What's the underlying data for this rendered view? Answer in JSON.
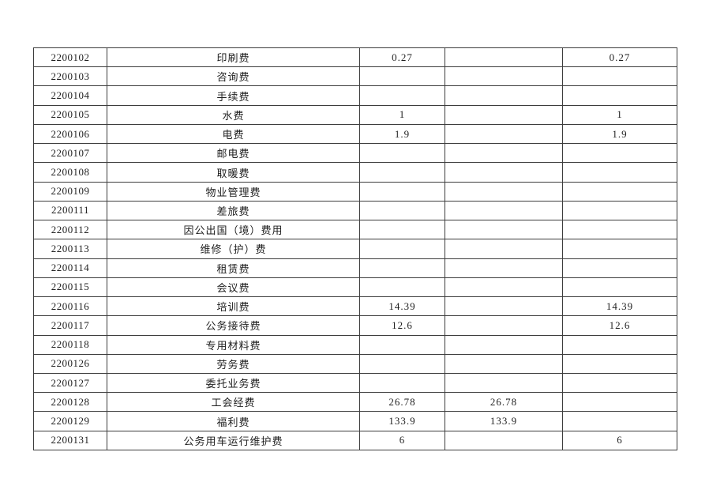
{
  "page": {
    "background_color": "#ffffff",
    "text_color": "#1f1f1f",
    "table_border_color": "#3d3d3d"
  },
  "table": {
    "description": "expense-items-table",
    "columns": [
      {
        "key": "code",
        "label": ""
      },
      {
        "key": "name",
        "label": ""
      },
      {
        "key": "v1",
        "label": ""
      },
      {
        "key": "v2",
        "label": ""
      },
      {
        "key": "v3",
        "label": ""
      }
    ],
    "rows": [
      {
        "code": "2200102",
        "name": "印刷费",
        "v1": "0.27",
        "v2": "",
        "v3": "0.27"
      },
      {
        "code": "2200103",
        "name": "咨询费",
        "v1": "",
        "v2": "",
        "v3": ""
      },
      {
        "code": "2200104",
        "name": "手续费",
        "v1": "",
        "v2": "",
        "v3": ""
      },
      {
        "code": "2200105",
        "name": "水费",
        "v1": "1",
        "v2": "",
        "v3": "1"
      },
      {
        "code": "2200106",
        "name": "电费",
        "v1": "1.9",
        "v2": "",
        "v3": "1.9"
      },
      {
        "code": "2200107",
        "name": "邮电费",
        "v1": "",
        "v2": "",
        "v3": ""
      },
      {
        "code": "2200108",
        "name": "取暖费",
        "v1": "",
        "v2": "",
        "v3": ""
      },
      {
        "code": "2200109",
        "name": "物业管理费",
        "v1": "",
        "v2": "",
        "v3": ""
      },
      {
        "code": "2200111",
        "name": "差旅费",
        "v1": "",
        "v2": "",
        "v3": ""
      },
      {
        "code": "2200112",
        "name": "因公出国（境）费用",
        "v1": "",
        "v2": "",
        "v3": ""
      },
      {
        "code": "2200113",
        "name": "维修（护）费",
        "v1": "",
        "v2": "",
        "v3": ""
      },
      {
        "code": "2200114",
        "name": "租赁费",
        "v1": "",
        "v2": "",
        "v3": ""
      },
      {
        "code": "2200115",
        "name": "会议费",
        "v1": "",
        "v2": "",
        "v3": ""
      },
      {
        "code": "2200116",
        "name": "培训费",
        "v1": "14.39",
        "v2": "",
        "v3": "14.39"
      },
      {
        "code": "2200117",
        "name": "公务接待费",
        "v1": "12.6",
        "v2": "",
        "v3": "12.6"
      },
      {
        "code": "2200118",
        "name": "专用材料费",
        "v1": "",
        "v2": "",
        "v3": ""
      },
      {
        "code": "2200126",
        "name": "劳务费",
        "v1": "",
        "v2": "",
        "v3": ""
      },
      {
        "code": "2200127",
        "name": "委托业务费",
        "v1": "",
        "v2": "",
        "v3": ""
      },
      {
        "code": "2200128",
        "name": "工会经费",
        "v1": "26.78",
        "v2": "26.78",
        "v3": ""
      },
      {
        "code": "2200129",
        "name": "福利费",
        "v1": "133.9",
        "v2": "133.9",
        "v3": ""
      },
      {
        "code": "2200131",
        "name": "公务用车运行维护费",
        "v1": "6",
        "v2": "",
        "v3": "6"
      }
    ]
  }
}
